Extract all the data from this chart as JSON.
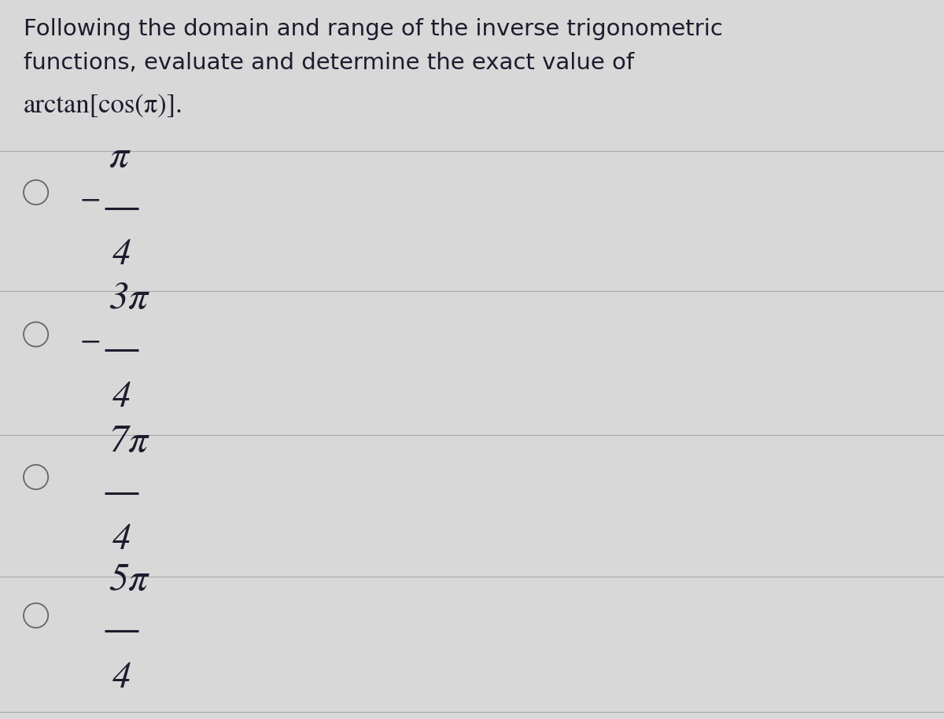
{
  "bg_color": "#d8d8d8",
  "question_line1": "Following the domain and range of the inverse trigonometric",
  "question_line2": "functions, evaluate and determine the exact value of",
  "question_expr": "arctan[cos(π)].",
  "options": [
    {
      "numerator": "π",
      "denominator": "4",
      "sign": "-"
    },
    {
      "numerator": "3π",
      "denominator": "4",
      "sign": "-"
    },
    {
      "numerator": "7π",
      "denominator": "4",
      "sign": ""
    },
    {
      "numerator": "5π",
      "denominator": "4",
      "sign": ""
    }
  ],
  "text_color": "#1c1c2e",
  "line_color": "#aaaaaa",
  "circle_color": "#666666",
  "question_fontsize": 21,
  "expr_fontsize": 25,
  "option_num_fontsize": 36,
  "option_denom_fontsize": 34,
  "sign_fontsize": 28
}
